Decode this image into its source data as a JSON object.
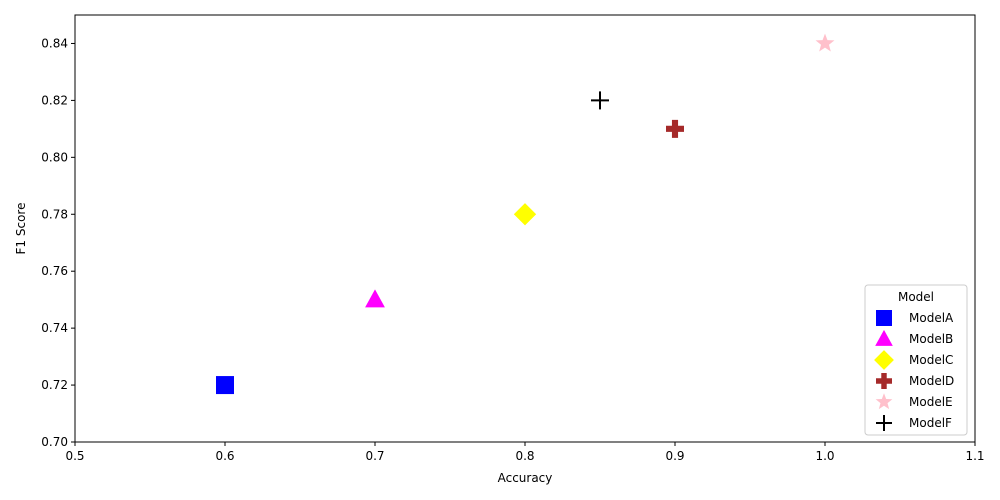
{
  "chart_data": {
    "type": "scatter",
    "title": "",
    "xlabel": "Accuracy",
    "ylabel": "F1 Score",
    "xlim": [
      0.5,
      1.1
    ],
    "ylim": [
      0.7,
      0.85
    ],
    "xticks": [
      "0.5",
      "0.6",
      "0.7",
      "0.8",
      "0.9",
      "1.0",
      "1.1"
    ],
    "yticks": [
      "0.70",
      "0.72",
      "0.74",
      "0.76",
      "0.78",
      "0.80",
      "0.82",
      "0.84"
    ],
    "grid": false,
    "legend": {
      "title": "Model",
      "placement": "lower-right"
    },
    "series": [
      {
        "name": "ModelA",
        "x": 0.6,
        "y": 0.72,
        "marker": "square",
        "color": "#0000ff"
      },
      {
        "name": "ModelB",
        "x": 0.7,
        "y": 0.75,
        "marker": "triangle",
        "color": "#ff00ff"
      },
      {
        "name": "ModelC",
        "x": 0.8,
        "y": 0.78,
        "marker": "diamond",
        "color": "#ffff00"
      },
      {
        "name": "ModelD",
        "x": 0.9,
        "y": 0.81,
        "marker": "plus-filled",
        "color": "#a52a2a"
      },
      {
        "name": "ModelE",
        "x": 1.0,
        "y": 0.84,
        "marker": "star",
        "color": "#ffc0cb"
      },
      {
        "name": "ModelF",
        "x": 0.85,
        "y": 0.82,
        "marker": "plus",
        "color": "#000000"
      }
    ]
  }
}
